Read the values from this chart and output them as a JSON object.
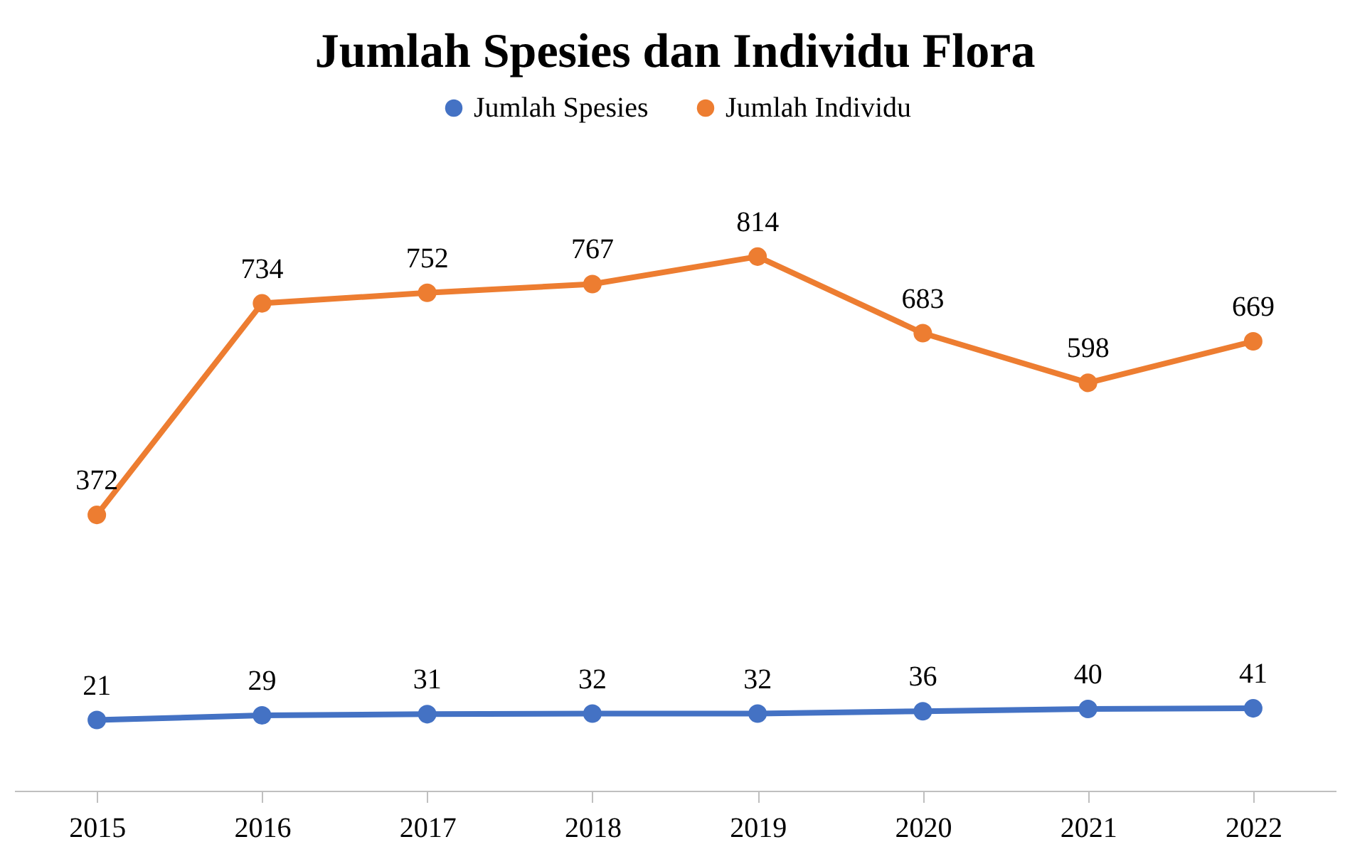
{
  "chart_data": {
    "type": "line",
    "title": "Jumlah Spesies dan Individu Flora",
    "categories": [
      "2015",
      "2016",
      "2017",
      "2018",
      "2019",
      "2020",
      "2021",
      "2022"
    ],
    "series": [
      {
        "name": "Jumlah Spesies",
        "color": "#4472c4",
        "values": [
          21,
          29,
          31,
          32,
          32,
          36,
          40,
          41
        ]
      },
      {
        "name": "Jumlah Individu",
        "color": "#ed7d31",
        "values": [
          372,
          734,
          752,
          767,
          814,
          683,
          598,
          669
        ]
      }
    ],
    "data_labels": true,
    "legend": "top",
    "marker": "circle",
    "line_style": "solid",
    "grid": false,
    "tick_labels": "x"
  }
}
